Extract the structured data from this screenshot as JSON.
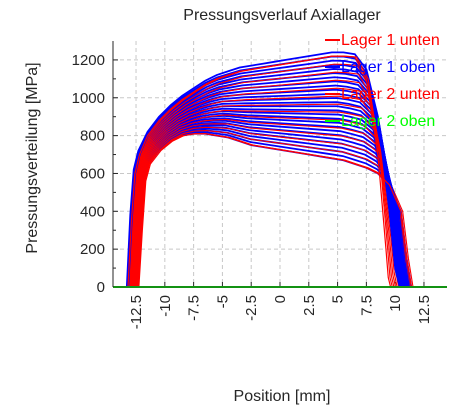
{
  "chart_data": {
    "type": "line",
    "title": "Pressungsverlauf Axiallager",
    "xlabel": "Position [mm]",
    "ylabel": "Pressungsverteilung [MPa]",
    "xlim": [
      -14.5,
      14.5
    ],
    "ylim": [
      0,
      1300
    ],
    "xticks": [
      -12.5,
      -10,
      -7.5,
      -5,
      -2.5,
      0,
      2.5,
      5,
      7.5,
      10,
      12.5
    ],
    "xtick_labels": [
      "-12.5",
      "-10",
      "-7.5",
      "-5",
      "-2.5",
      "0",
      "2.5",
      "5",
      "7.5",
      "10",
      "12.5"
    ],
    "yticks": [
      0,
      200,
      400,
      600,
      800,
      1000,
      1200
    ],
    "ytick_labels": [
      "0",
      "200",
      "400",
      "600",
      "800",
      "1000",
      "1200"
    ],
    "grid": true,
    "legend_position": "top-right",
    "series": [
      {
        "name": "Lager 1 unten",
        "color": "#ff0000",
        "x": [
          -13.2,
          -12.9,
          -12.6,
          -12.2,
          -11.5,
          -10.5,
          -9.5,
          -8.5,
          -7.5,
          -6.5,
          -5.5,
          -4.5,
          -3.5,
          -2.5,
          -1.5,
          -0.5,
          0.5,
          1.5,
          2.5,
          3.5,
          4.5,
          5.5,
          6.5,
          7.5,
          8.5,
          9.2,
          9.4,
          9.6
        ],
        "y": [
          0,
          350,
          600,
          700,
          800,
          880,
          940,
          990,
          1030,
          1070,
          1100,
          1120,
          1140,
          1150,
          1160,
          1170,
          1180,
          1190,
          1200,
          1210,
          1220,
          1220,
          1215,
          1100,
          700,
          200,
          50,
          0
        ]
      },
      {
        "name": "Lager 1 oben",
        "color": "#0000ff",
        "x": [
          -13.3,
          -13.0,
          -12.7,
          -12.3,
          -11.5,
          -10.5,
          -9.5,
          -8.5,
          -7.5,
          -6.5,
          -5.5,
          -4.5,
          -3.5,
          -2.5,
          -1.5,
          -0.5,
          0.5,
          1.5,
          2.5,
          3.5,
          4.5,
          5.5,
          6.5,
          7.5,
          8.5,
          9.5,
          10.0,
          10.4
        ],
        "y": [
          0,
          380,
          620,
          720,
          820,
          900,
          960,
          1010,
          1050,
          1090,
          1120,
          1140,
          1160,
          1170,
          1180,
          1190,
          1200,
          1210,
          1220,
          1230,
          1240,
          1240,
          1230,
          1150,
          900,
          400,
          100,
          0
        ]
      },
      {
        "name": "Lager 2 unten",
        "color": "#ff0000",
        "x": [
          -12.4,
          -12.1,
          -11.8,
          -11.4,
          -10.5,
          -9.5,
          -8.5,
          -7.5,
          -6.5,
          -5.5,
          -4.5,
          -3.5,
          -2.5,
          -1.5,
          -0.5,
          0.5,
          1.5,
          2.5,
          3.5,
          4.5,
          5.5,
          6.5,
          7.5,
          8.5,
          9.5,
          10.5,
          11.0,
          11.4
        ],
        "y": [
          0,
          300,
          560,
          650,
          720,
          770,
          800,
          810,
          810,
          800,
          790,
          770,
          750,
          740,
          730,
          720,
          710,
          700,
          690,
          680,
          670,
          650,
          630,
          600,
          540,
          400,
          150,
          0
        ]
      },
      {
        "name": "Lager 2 oben",
        "color": "#00ff00",
        "x": [
          -14.5,
          14.5
        ],
        "y": [
          0,
          0
        ]
      }
    ]
  }
}
